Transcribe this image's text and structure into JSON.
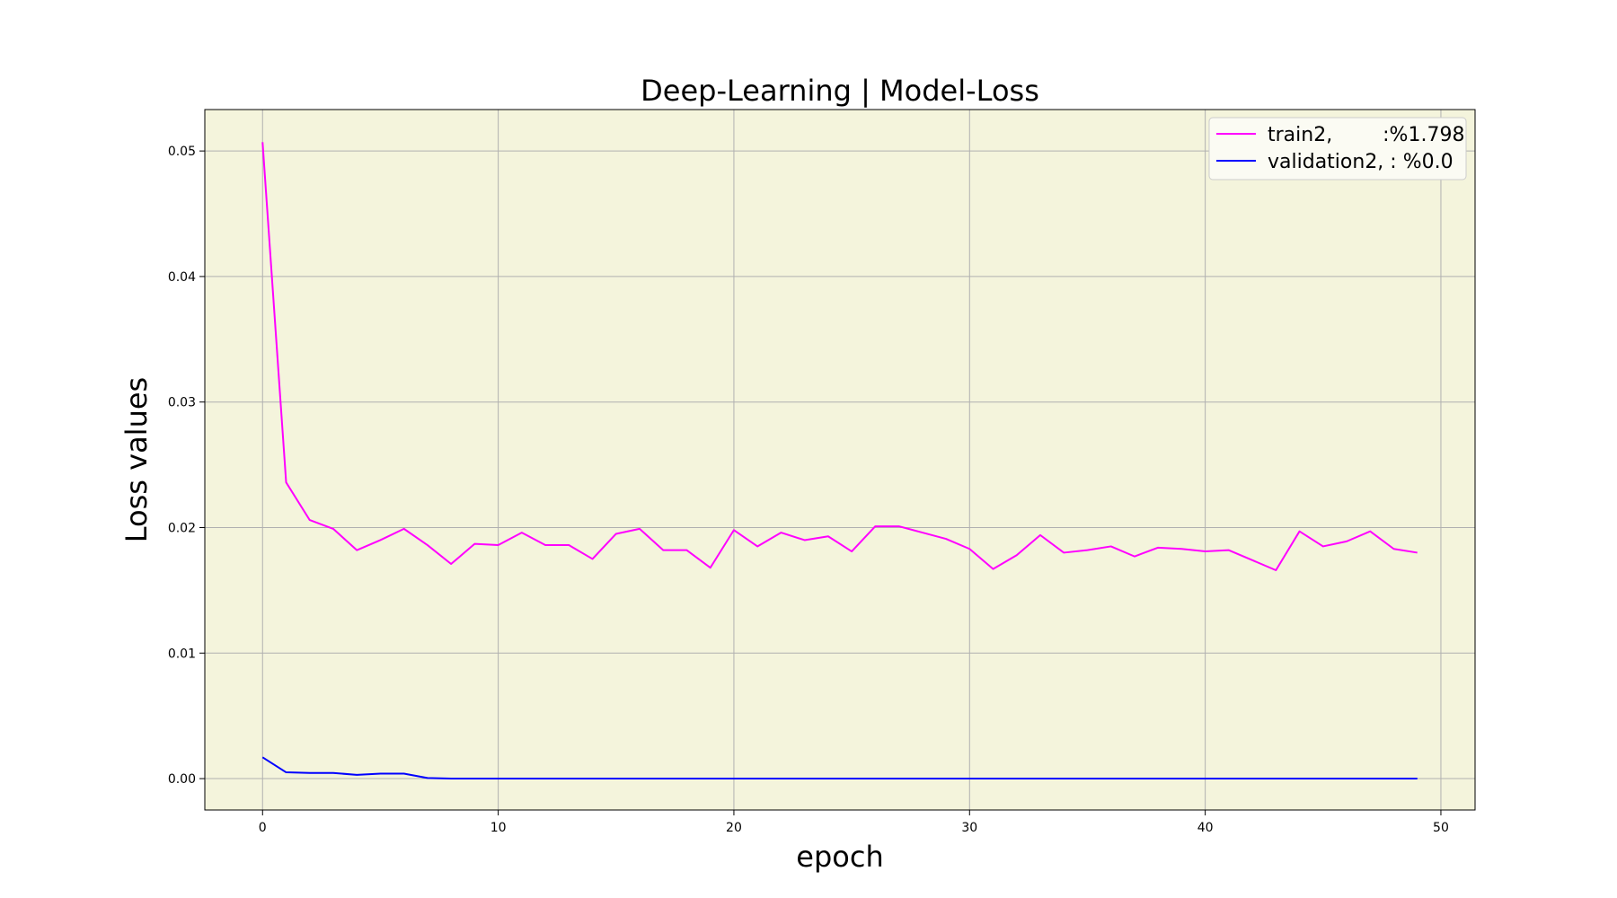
{
  "chart_data": {
    "type": "line",
    "title": "Deep-Learning | Model-Loss",
    "xlabel": "epoch",
    "ylabel": "Loss values",
    "xlim": [
      -2.45,
      51.45
    ],
    "ylim": [
      -0.0025,
      0.0533
    ],
    "xticks": [
      0,
      10,
      20,
      30,
      40,
      50
    ],
    "xtick_labels": [
      "0",
      "10",
      "20",
      "30",
      "40",
      "50"
    ],
    "yticks": [
      0.0,
      0.01,
      0.02,
      0.03,
      0.04,
      0.05
    ],
    "ytick_labels": [
      "0.00",
      "0.01",
      "0.02",
      "0.03",
      "0.04",
      "0.05"
    ],
    "grid": true,
    "legend_position": "top-right",
    "background": "#f4f4dc",
    "x": [
      0,
      1,
      2,
      3,
      4,
      5,
      6,
      7,
      8,
      9,
      10,
      11,
      12,
      13,
      14,
      15,
      16,
      17,
      18,
      19,
      20,
      21,
      22,
      23,
      24,
      25,
      26,
      27,
      28,
      29,
      30,
      31,
      32,
      33,
      34,
      35,
      36,
      37,
      38,
      39,
      40,
      41,
      42,
      43,
      44,
      45,
      46,
      47,
      48,
      49
    ],
    "series": [
      {
        "name": "train2,        :%1.798",
        "color": "#ff00ff",
        "values": [
          0.0507,
          0.0236,
          0.0206,
          0.0199,
          0.0182,
          0.019,
          0.0199,
          0.0186,
          0.0171,
          0.0187,
          0.0186,
          0.0196,
          0.0186,
          0.0186,
          0.0175,
          0.0195,
          0.0199,
          0.0182,
          0.0182,
          0.0168,
          0.0198,
          0.0185,
          0.0196,
          0.019,
          0.0193,
          0.0181,
          0.0201,
          0.0201,
          0.0196,
          0.0191,
          0.0183,
          0.0167,
          0.0178,
          0.0194,
          0.018,
          0.0182,
          0.0185,
          0.0177,
          0.0184,
          0.0183,
          0.0181,
          0.0182,
          0.0174,
          0.0166,
          0.0197,
          0.0185,
          0.0189,
          0.0197,
          0.0183,
          0.018
        ]
      },
      {
        "name": "validation2, : %0.0",
        "color": "#0000ff",
        "values": [
          0.0017,
          0.0005,
          0.00045,
          0.00045,
          0.0003,
          0.0004,
          0.0004,
          5e-05,
          0,
          0,
          0,
          0,
          0,
          0,
          0,
          0,
          0,
          0,
          0,
          0,
          0,
          0,
          0,
          0,
          0,
          0,
          0,
          0,
          0,
          0,
          0,
          0,
          0,
          0,
          0,
          0,
          0,
          0,
          0,
          0,
          0,
          0,
          0,
          0,
          0,
          0,
          0,
          0,
          0,
          0
        ]
      }
    ]
  }
}
